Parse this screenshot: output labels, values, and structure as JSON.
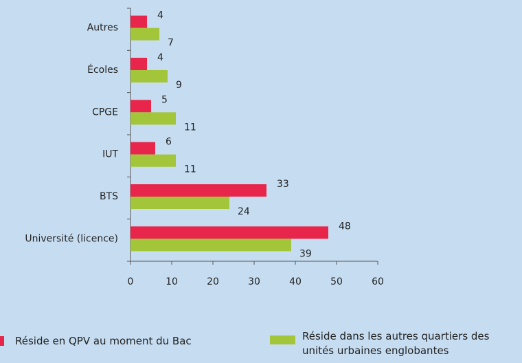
{
  "chart_data": {
    "type": "bar",
    "orientation": "horizontal",
    "categories": [
      "Autres",
      "Écoles",
      "CPGE",
      "IUT",
      "BTS",
      "Université (licence)"
    ],
    "series": [
      {
        "name": "Réside en QPV au moment du Bac",
        "color": "#e8254a",
        "values": [
          4,
          4,
          5,
          6,
          33,
          48
        ]
      },
      {
        "name": "Réside dans les autres quartiers des unités urbaines englobantes",
        "color": "#a3c53a",
        "values": [
          7,
          9,
          11,
          11,
          24,
          39
        ]
      }
    ],
    "xlim": [
      0,
      60
    ],
    "xticks": [
      0,
      10,
      20,
      30,
      40,
      50,
      60
    ]
  }
}
